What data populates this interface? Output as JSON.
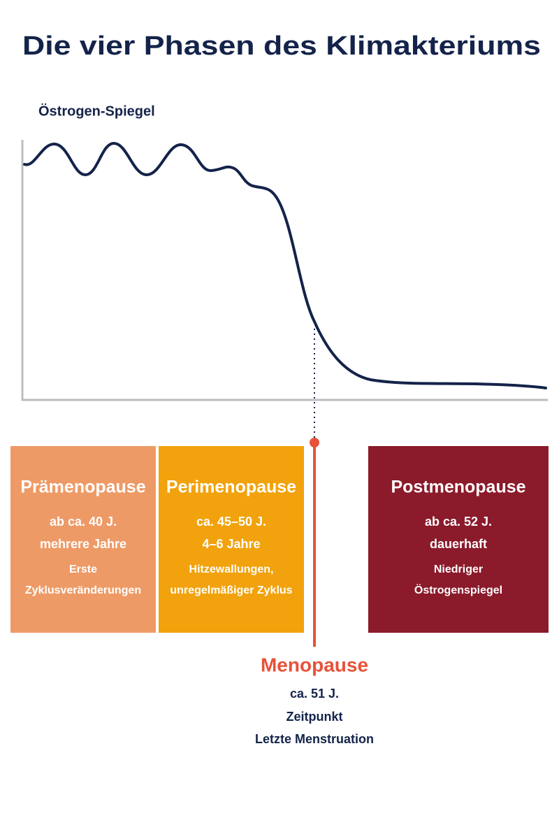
{
  "title": "Die vier Phasen des Klimakteriums",
  "chart": {
    "y_axis_label": "Östrogen-Spiegel"
  },
  "phases": [
    {
      "name": "Prämenopause",
      "age": "ab ca. 40 J.",
      "duration": "mehrere Jahre",
      "description_lines": [
        "Erste",
        "Zyklusveränderungen"
      ]
    },
    {
      "name": "Perimenopause",
      "age": "ca. 45–50 J.",
      "duration": "4–6 Jahre",
      "description_lines": [
        "Hitzewallungen,",
        "unregelmäßiger Zyklus"
      ]
    },
    {
      "name": "Postmenopause",
      "age": "ab ca. 52 J.",
      "duration": "dauerhaft",
      "description_lines": [
        "Niedriger",
        "Östrogenspiegel"
      ]
    }
  ],
  "menopause": {
    "name": "Menopause",
    "age": "ca. 51 J.",
    "type": "Zeitpunkt",
    "description": "Letzte Menstruation"
  }
}
